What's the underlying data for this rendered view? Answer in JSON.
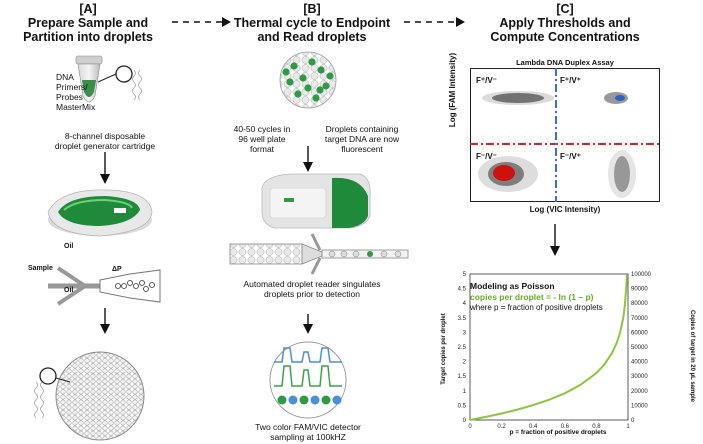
{
  "panel_a": {
    "letter": "[A]",
    "title_line1": "Prepare Sample and",
    "title_line2": "Partition into droplets",
    "tube_label_1": "DNA",
    "tube_label_2": "Primers/",
    "tube_label_3": "Probes",
    "tube_label_4": "MasterMix",
    "cartridge_line1": "8-channel disposable",
    "cartridge_line2": "droplet generator cartridge",
    "label_oil_top": "Oil",
    "label_sample": "Sample",
    "label_oil_bottom": "Oil",
    "label_dp": "ΔP"
  },
  "panel_b": {
    "letter": "[B]",
    "title_line1": "Thermal cycle to Endpoint",
    "title_line2": "and Read droplets",
    "cycles_line1": "40-50 cycles in",
    "cycles_line2": "96 well plate",
    "cycles_line3": "format",
    "fluor_line1": "Droplets containing",
    "fluor_line2": "target DNA are now",
    "fluor_line3": "fluorescent",
    "reader_line1": "Automated droplet reader singulates",
    "reader_line2": "droplets prior to detection",
    "detector_line1": "Two color FAM/VIC detector",
    "detector_line2": "sampling at 100kHZ"
  },
  "panel_c": {
    "letter": "[C]",
    "title_line1": "Apply Thresholds and",
    "title_line2": "Compute Concentrations",
    "scatter_title": "Lambda DNA Duplex Assay",
    "scatter_ylabel": "Log (FAM Intensity)",
    "scatter_xlabel": "Log (VIC Intensity)",
    "q_tl": "F⁺/V⁻",
    "q_tr": "F⁺/V⁺",
    "q_bl": "F⁻/V⁻",
    "q_br": "F⁻/V⁺"
  },
  "colors": {
    "green": "#2e8b3a",
    "curve": "#8cc63f",
    "red_threshold": "#e02020",
    "blue_threshold": "#3b6fd0"
  },
  "chart_data": {
    "type": "line",
    "title": "Modeling as Poisson",
    "formula": "copies per droplet = - ln (1 – p)",
    "note": "where p = fraction of positive droplets",
    "xlabel": "p = fraction of positive droplets",
    "ylabel": "Target copies per droplet",
    "y2label": "Copies of target in 20 µL sample",
    "x_ticks": [
      "0",
      "0.2",
      "0.4",
      "0.6",
      "0.8",
      "1"
    ],
    "y_ticks": [
      "0",
      "0.5",
      "1",
      "1.5",
      "2",
      "2.5",
      "3",
      "3.5",
      "4",
      "4.5",
      "5"
    ],
    "y2_ticks": [
      "0",
      "10000",
      "20000",
      "30000",
      "40000",
      "50000",
      "60000",
      "70000",
      "80000",
      "90000",
      "100000"
    ],
    "xlim": [
      0,
      1
    ],
    "ylim": [
      0,
      5
    ],
    "x": [
      0,
      0.1,
      0.2,
      0.3,
      0.4,
      0.5,
      0.6,
      0.7,
      0.8,
      0.85,
      0.9,
      0.93,
      0.95,
      0.97,
      0.98,
      0.99,
      0.993
    ],
    "y": [
      0,
      0.105,
      0.223,
      0.357,
      0.511,
      0.693,
      0.916,
      1.204,
      1.609,
      1.897,
      2.303,
      2.659,
      2.996,
      3.507,
      3.912,
      4.605,
      4.962
    ]
  }
}
